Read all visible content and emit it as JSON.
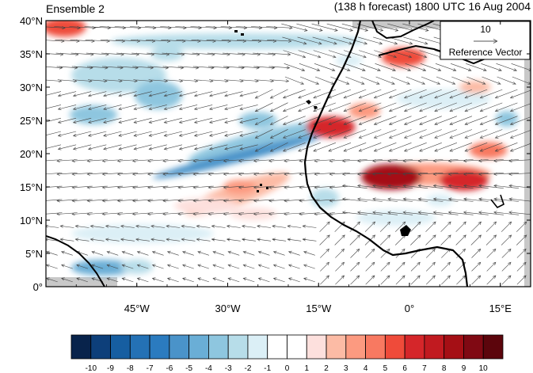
{
  "header": {
    "left_title": "Ensemble 2",
    "right_title": "(138 h forecast) 1800 UTC 16 Aug 2004"
  },
  "chart_data": {
    "type": "map",
    "subtitle": "",
    "projection": "cylindrical-equidistant",
    "lon_range": [
      -60,
      20
    ],
    "lat_range": [
      0,
      40
    ],
    "x_ticks": [
      {
        "value": -45,
        "label": "45°W"
      },
      {
        "value": -30,
        "label": "30°W"
      },
      {
        "value": -15,
        "label": "15°W"
      },
      {
        "value": 0,
        "label": "0°"
      },
      {
        "value": 15,
        "label": "15°E"
      }
    ],
    "y_ticks": [
      {
        "value": 0,
        "label": "0°"
      },
      {
        "value": 5,
        "label": "5°N"
      },
      {
        "value": 10,
        "label": "10°N"
      },
      {
        "value": 15,
        "label": "15°N"
      },
      {
        "value": 20,
        "label": "20°N"
      },
      {
        "value": 25,
        "label": "25°N"
      },
      {
        "value": 30,
        "label": "30°N"
      },
      {
        "value": 35,
        "label": "35°N"
      },
      {
        "value": 40,
        "label": "40°N"
      }
    ],
    "reference_vector": {
      "value": "10",
      "label": "Reference Vector"
    },
    "colorbar": {
      "labels": [
        "-10",
        "-9",
        "-8",
        "-7",
        "-6",
        "-5",
        "-4",
        "-3",
        "-2",
        "-1",
        "0",
        "1",
        "2",
        "3",
        "4",
        "5",
        "6",
        "7",
        "8",
        "9",
        "10"
      ],
      "colors": [
        "#08234b",
        "#0d3f7a",
        "#165ea1",
        "#2471b5",
        "#2b7bbf",
        "#4a93c9",
        "#6aaed6",
        "#8ec6df",
        "#b7dde9",
        "#dbeff6",
        "#ffffff",
        "#ffffff",
        "#fde0dd",
        "#fcbba5",
        "#fc9a80",
        "#f87961",
        "#ef4b3a",
        "#d5262a",
        "#c11a20",
        "#a50f15",
        "#800913",
        "#5c050c"
      ]
    },
    "anomaly_features": [
      {
        "lon": -13,
        "lat": 24,
        "value": 6
      },
      {
        "lon": -3,
        "lat": 16.5,
        "value": 8
      },
      {
        "lon": 9,
        "lat": 16,
        "value": 6
      },
      {
        "lon": -1,
        "lat": 34.5,
        "value": 5
      },
      {
        "lon": 13,
        "lat": 20.5,
        "value": 4
      },
      {
        "lon": -57,
        "lat": 39,
        "value": 5
      },
      {
        "lon": -28,
        "lat": 15,
        "value": 3
      },
      {
        "lon": -25,
        "lat": 25,
        "value": -4
      },
      {
        "lon": -40,
        "lat": 35,
        "value": -3
      },
      {
        "lon": -45,
        "lat": 3,
        "value": -3
      },
      {
        "lon": -10,
        "lat": 34,
        "value": -2
      },
      {
        "lon": 5,
        "lat": 13,
        "value": -2
      }
    ]
  }
}
